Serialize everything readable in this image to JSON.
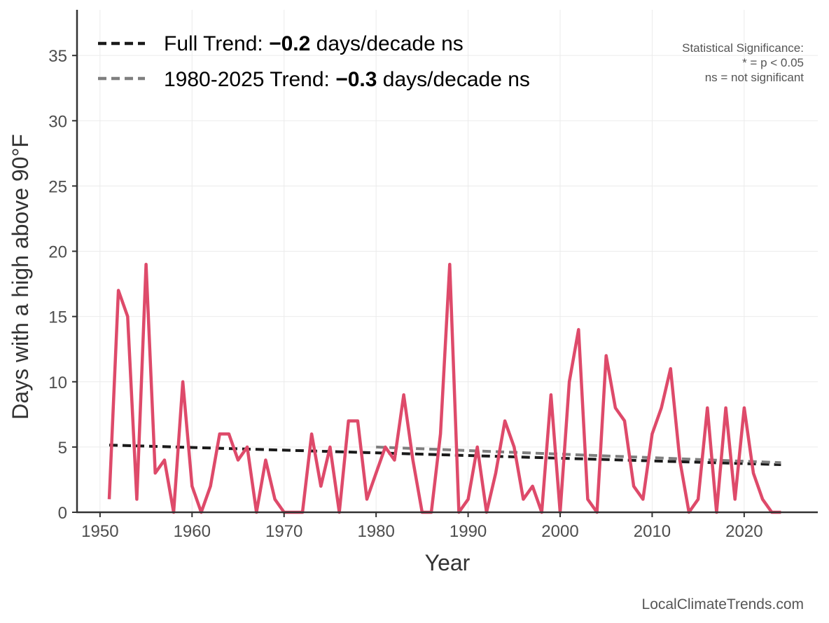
{
  "chart_data": {
    "type": "line",
    "xlabel": "Year",
    "ylabel": "Days with a high above 90°F",
    "xlim": [
      1947.5,
      2028
    ],
    "ylim": [
      0,
      38.5
    ],
    "x_ticks": [
      1950,
      1960,
      1970,
      1980,
      1990,
      2000,
      2010,
      2020
    ],
    "y_ticks": [
      0,
      5,
      10,
      15,
      20,
      25,
      30,
      35
    ],
    "grid": true,
    "series": [
      {
        "color": "#de4a6a",
        "x": [
          1951,
          1952,
          1953,
          1954,
          1955,
          1956,
          1957,
          1958,
          1959,
          1960,
          1961,
          1962,
          1963,
          1964,
          1965,
          1966,
          1967,
          1968,
          1969,
          1970,
          1971,
          1972,
          1973,
          1974,
          1975,
          1976,
          1977,
          1978,
          1979,
          1980,
          1981,
          1982,
          1983,
          1984,
          1985,
          1986,
          1987,
          1988,
          1989,
          1990,
          1991,
          1992,
          1993,
          1994,
          1995,
          1996,
          1997,
          1998,
          1999,
          2000,
          2001,
          2002,
          2003,
          2004,
          2005,
          2006,
          2007,
          2008,
          2009,
          2010,
          2011,
          2012,
          2013,
          2014,
          2015,
          2016,
          2017,
          2018,
          2019,
          2020,
          2021,
          2022,
          2023,
          2024
        ],
        "values": [
          1,
          17,
          15,
          1,
          19,
          3,
          4,
          0,
          10,
          2,
          0,
          2,
          6,
          6,
          4,
          5,
          0,
          4,
          1,
          0,
          0,
          0,
          6,
          2,
          5,
          0,
          7,
          7,
          1,
          3,
          5,
          4,
          9,
          4,
          0,
          0,
          6,
          19,
          0,
          1,
          5,
          0,
          3,
          7,
          5,
          1,
          2,
          0,
          9,
          0,
          10,
          14,
          1,
          0,
          12,
          8,
          7,
          2,
          1,
          6,
          8,
          11,
          4,
          0,
          1,
          8,
          0,
          8,
          1,
          8,
          3,
          1,
          0,
          0
        ]
      }
    ],
    "trend_lines": [
      {
        "x": [
          1951,
          2024
        ],
        "y": [
          5.15,
          3.65
        ],
        "color": "#1a1a1a",
        "dash": "12,7"
      },
      {
        "x": [
          1980,
          2024
        ],
        "y": [
          5.0,
          3.8
        ],
        "color": "#7f7f7f",
        "dash": "12,7"
      }
    ],
    "legend": {
      "placement": "top-left",
      "entries": [
        {
          "prefix": "Full Trend: ",
          "value": "−0.2",
          "suffix": " days/decade ns",
          "color": "#1a1a1a"
        },
        {
          "prefix": "1980-2025 Trend: ",
          "value": "−0.3",
          "suffix": " days/decade ns",
          "color": "#7f7f7f"
        }
      ]
    },
    "annotations": {
      "significance": [
        "Statistical Significance:",
        "* = p < 0.05",
        "ns = not significant"
      ],
      "credit": "LocalClimateTrends.com"
    }
  }
}
